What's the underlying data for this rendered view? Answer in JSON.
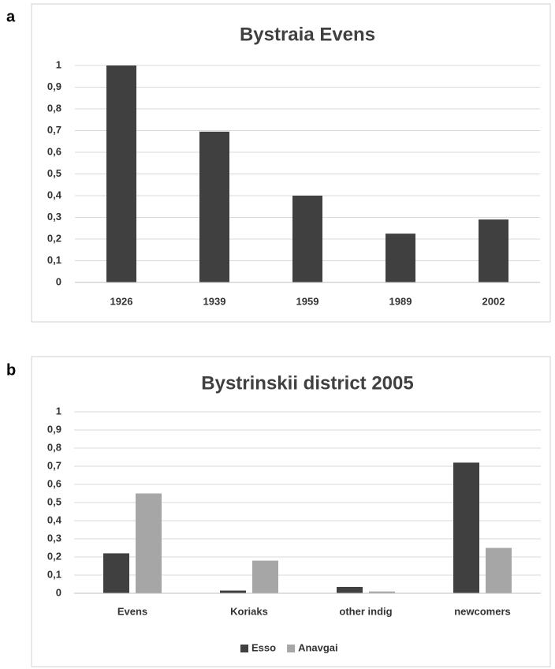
{
  "chart_data": [
    {
      "type": "bar",
      "label": "a",
      "title": "Bystraia Evens",
      "categories": [
        "1926",
        "1939",
        "1959",
        "1989",
        "2002"
      ],
      "values": [
        1,
        0.695,
        0.4,
        0.225,
        0.29
      ],
      "color": "#404040",
      "ylim": [
        0,
        1
      ],
      "yticks": [
        0,
        {
          "value": 0.1,
          "label": "0,1"
        },
        {
          "value": 0.2,
          "label": "0,2"
        },
        {
          "value": 0.3,
          "label": "0,3"
        },
        {
          "value": 0.4,
          "label": "0,4"
        },
        {
          "value": 0.5,
          "label": "0,5"
        },
        {
          "value": 0.6,
          "label": "0,6"
        },
        {
          "value": 0.7,
          "label": "0,7"
        },
        {
          "value": 0.8,
          "label": "0,8"
        },
        {
          "value": 0.9,
          "label": "0,9"
        },
        1
      ],
      "grid": true
    },
    {
      "type": "grouped_bar",
      "label": "b",
      "title": "Bystrinskii district 2005",
      "categories": [
        "Evens",
        "Koriaks",
        "other indig",
        "newcomers"
      ],
      "series": [
        {
          "name": "Esso",
          "color": "#404040",
          "values": [
            0.22,
            0.015,
            0.035,
            0.72
          ]
        },
        {
          "name": "Anavgai",
          "color": "#a6a6a6",
          "values": [
            0.55,
            0.18,
            0.01,
            0.25
          ]
        }
      ],
      "ylim": [
        0,
        1
      ],
      "yticks": [
        0,
        {
          "value": 0.1,
          "label": "0,1"
        },
        {
          "value": 0.2,
          "label": "0,2"
        },
        {
          "value": 0.3,
          "label": "0,3"
        },
        {
          "value": 0.4,
          "label": "0,4"
        },
        {
          "value": 0.5,
          "label": "0,5"
        },
        {
          "value": 0.6,
          "label": "0,6"
        },
        {
          "value": 0.7,
          "label": "0,7"
        },
        {
          "value": 0.8,
          "label": "0,8"
        },
        {
          "value": 0.9,
          "label": "0,9"
        },
        1
      ],
      "grid": true,
      "legend": "bottom"
    }
  ]
}
